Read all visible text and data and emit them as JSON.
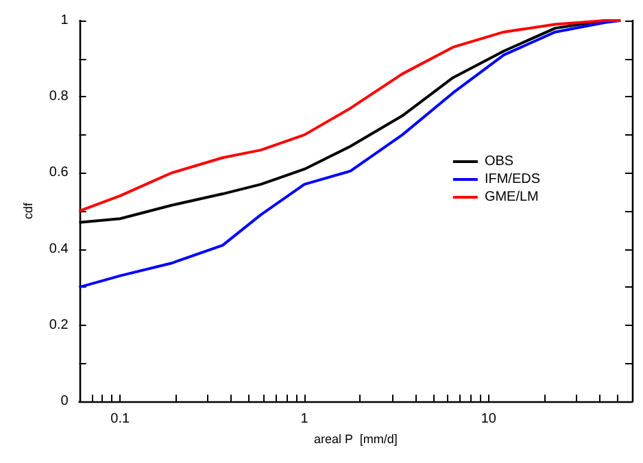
{
  "chart_data": {
    "type": "line",
    "xlabel": "areal P  [mm/d]",
    "ylabel": "cdf",
    "log": "x",
    "xlim": [
      0.06,
      60
    ],
    "ylim": [
      0,
      1
    ],
    "xticks": [
      {
        "value": 0.07,
        "label": null
      },
      {
        "value": 0.08,
        "label": null
      },
      {
        "value": 0.09,
        "label": null
      },
      0.1,
      {
        "value": 0.2,
        "label": null
      },
      {
        "value": 0.3,
        "label": null
      },
      {
        "value": 0.4,
        "label": null
      },
      {
        "value": 0.5,
        "label": null
      },
      {
        "value": 0.6,
        "label": null
      },
      {
        "value": 0.7,
        "label": null
      },
      {
        "value": 0.8,
        "label": null
      },
      {
        "value": 0.9,
        "label": null
      },
      1,
      {
        "value": 2,
        "label": null
      },
      {
        "value": 3,
        "label": null
      },
      {
        "value": 4,
        "label": null
      },
      {
        "value": 5,
        "label": null
      },
      {
        "value": 6,
        "label": null
      },
      {
        "value": 7,
        "label": null
      },
      {
        "value": 8,
        "label": null
      },
      {
        "value": 9,
        "label": null
      },
      10,
      {
        "value": 20,
        "label": null
      },
      {
        "value": 30,
        "label": null
      },
      {
        "value": 40,
        "label": null
      },
      {
        "value": 50,
        "label": null
      }
    ],
    "yticks": [
      0,
      {
        "value": 0.1,
        "label": null
      },
      0.2,
      {
        "value": 0.3,
        "label": null
      },
      0.4,
      {
        "value": 0.5,
        "label": null
      },
      0.6,
      {
        "value": 0.7,
        "label": null
      },
      0.8,
      {
        "value": 0.9,
        "label": null
      },
      1
    ],
    "x": [
      0.06,
      0.1,
      0.19,
      0.36,
      0.58,
      1,
      1.78,
      3.4,
      6.4,
      12.1,
      23,
      43,
      52
    ],
    "series": [
      {
        "name": "OBS",
        "color": "#000000",
        "values": [
          0.47,
          0.48,
          0.515,
          0.545,
          0.57,
          0.61,
          0.67,
          0.75,
          0.85,
          0.92,
          0.98,
          1.0,
          1.0
        ]
      },
      {
        "name": "IFM/EDS",
        "color": "#0000ff",
        "values": [
          0.3,
          0.33,
          0.363,
          0.41,
          0.49,
          0.57,
          0.605,
          0.7,
          0.81,
          0.91,
          0.97,
          0.995,
          1.0
        ]
      },
      {
        "name": "GME/LM",
        "color": "#ff0000",
        "values": [
          0.5,
          0.54,
          0.6,
          0.64,
          0.66,
          0.7,
          0.77,
          0.86,
          0.93,
          0.97,
          0.99,
          1.0,
          1.0
        ]
      }
    ],
    "legend": "right",
    "grid": false,
    "marker": "none",
    "line_style": "solid"
  }
}
